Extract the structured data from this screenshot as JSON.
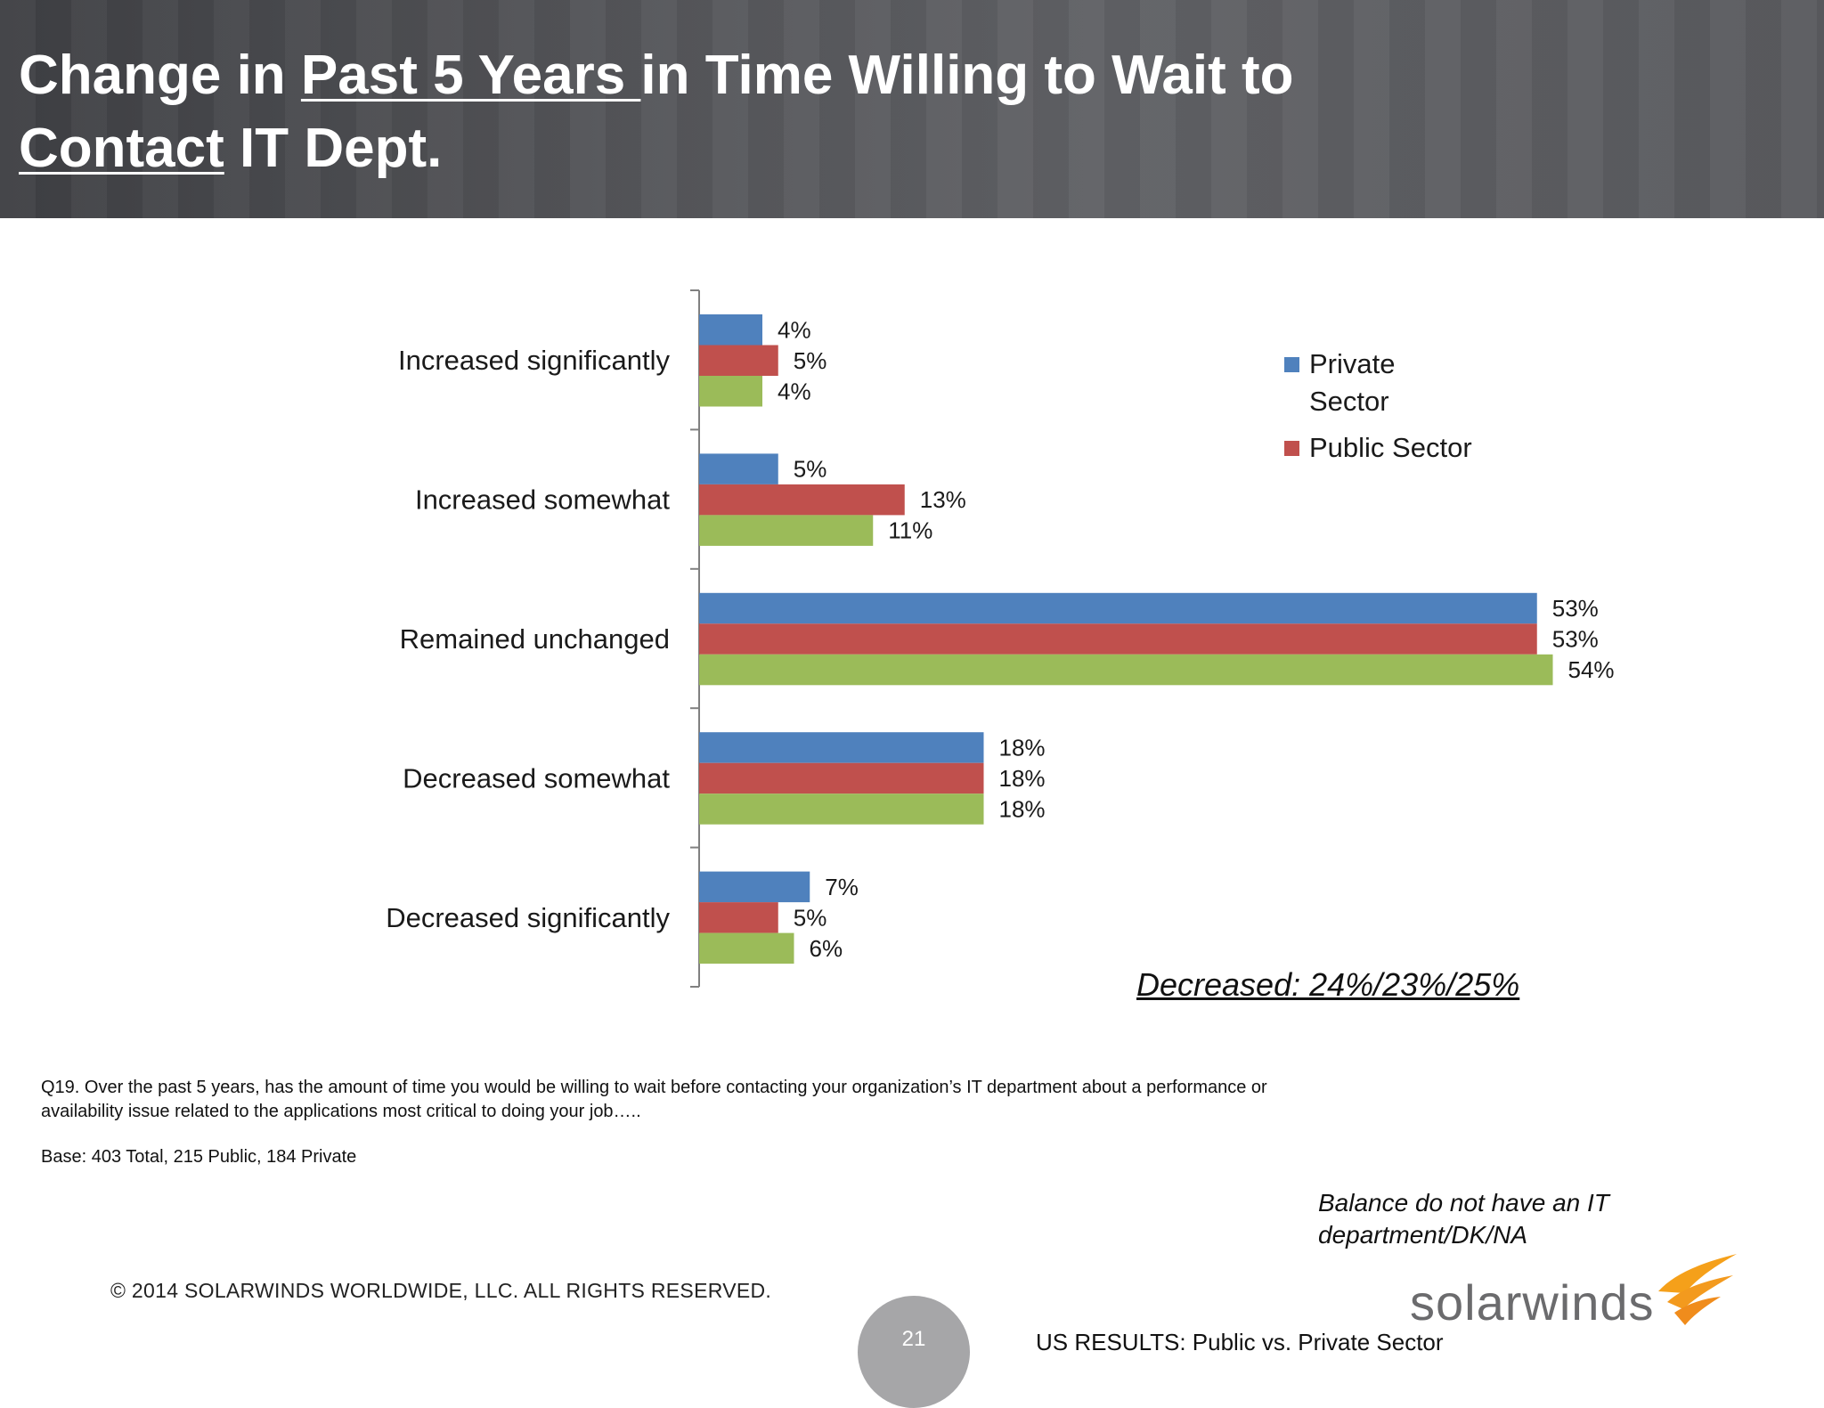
{
  "title": {
    "part1": "Change in ",
    "underline1": "Past 5 Years ",
    "part2": "in Time Willing to Wait to",
    "underline2": "Contact",
    "part3": " IT Dept."
  },
  "chart_data": {
    "type": "bar",
    "orientation": "horizontal",
    "categories": [
      "Increased significantly",
      "Increased somewhat",
      "Remained unchanged",
      "Decreased somewhat",
      "Decreased significantly"
    ],
    "series": [
      {
        "name": "Private Sector",
        "color": "#4f81bd",
        "values": [
          4,
          5,
          53,
          18,
          7
        ],
        "labels": [
          "4%",
          "5%",
          "53%",
          "18%",
          "7%"
        ]
      },
      {
        "name": "Public Sector",
        "color": "#c0504d",
        "values": [
          5,
          13,
          53,
          18,
          5
        ],
        "labels": [
          "5%",
          "13%",
          "53%",
          "18%",
          "5%"
        ]
      },
      {
        "color": "#9bbb59",
        "values": [
          4,
          11,
          54,
          18,
          6
        ],
        "labels": [
          "4%",
          "11%",
          "54%",
          "18%",
          "6%"
        ]
      }
    ],
    "xlim": [
      0,
      60
    ],
    "legend_position": "top-right",
    "grid": false
  },
  "legend": {
    "private_line1": "Private",
    "private_line2": "Sector",
    "public": "Public Sector"
  },
  "decreased_note": "Decreased:  24%/23%/25%",
  "question": "Q19. Over the past 5 years, has the amount of time you would be willing to wait before contacting your organization’s IT department about a performance or availability issue related to the applications most critical to doing your job…..",
  "base": "Base:  403  Total, 215 Public, 184 Private",
  "balance": "Balance do not have an IT department/DK/NA",
  "copyright": "© 2014 SOLARWINDS WORLDWIDE, LLC.  ALL RIGHTS RESERVED.",
  "page_number": "21",
  "us_results": "US RESULTS:  Public vs. Private Sector",
  "logo_text": "solarwinds"
}
